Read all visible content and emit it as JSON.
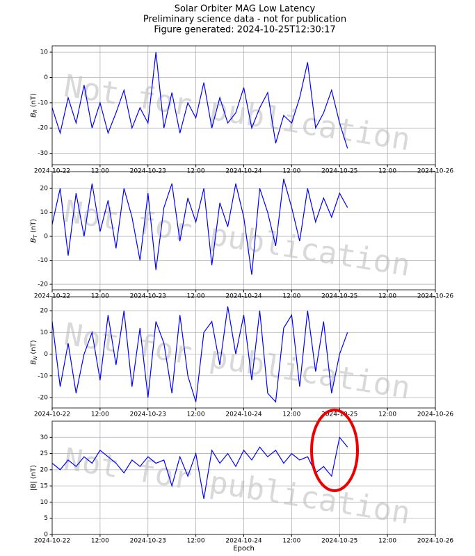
{
  "figure": {
    "title_lines": [
      "Solar Orbiter MAG Low Latency",
      "Preliminary science data - not for publication",
      "Figure generated: 2024-10-25T12:30:17"
    ]
  },
  "chart_data": [
    {
      "type": "line",
      "ylabel": "B",
      "ylabel_sub": "R",
      "ylabel_unit": "(nT)",
      "watermark": "Not for publication",
      "x": [
        "2024-10-22T00:00",
        "2024-10-22T02:00",
        "2024-10-22T04:00",
        "2024-10-22T06:00",
        "2024-10-22T08:00",
        "2024-10-22T10:00",
        "2024-10-22T12:00",
        "2024-10-22T14:00",
        "2024-10-22T16:00",
        "2024-10-22T18:00",
        "2024-10-22T20:00",
        "2024-10-22T22:00",
        "2024-10-23T00:00",
        "2024-10-23T02:00",
        "2024-10-23T04:00",
        "2024-10-23T06:00",
        "2024-10-23T08:00",
        "2024-10-23T10:00",
        "2024-10-23T12:00",
        "2024-10-23T14:00",
        "2024-10-23T16:00",
        "2024-10-23T18:00",
        "2024-10-23T20:00",
        "2024-10-23T22:00",
        "2024-10-24T00:00",
        "2024-10-24T02:00",
        "2024-10-24T04:00",
        "2024-10-24T06:00",
        "2024-10-24T08:00",
        "2024-10-24T10:00",
        "2024-10-24T12:00",
        "2024-10-24T14:00",
        "2024-10-24T16:00",
        "2024-10-24T18:00",
        "2024-10-24T20:00",
        "2024-10-24T22:00",
        "2024-10-25T00:00",
        "2024-10-25T02:00"
      ],
      "series": [
        {
          "color": "#0000ff",
          "values": [
            -12,
            -22,
            -8,
            -18,
            -3,
            -20,
            -10,
            -22,
            -14,
            -5,
            -20,
            -12,
            -18,
            10,
            -20,
            -6,
            -22,
            -10,
            -16,
            -2,
            -20,
            -8,
            -18,
            -14,
            -4,
            -20,
            -12,
            -6,
            -26,
            -15,
            -18,
            -8,
            6,
            -20,
            -14,
            -5,
            -18,
            -28
          ]
        }
      ],
      "xlim": [
        "2024-10-22T00:00",
        "2024-10-26T00:00"
      ],
      "xticks": [
        {
          "value": "2024-10-22T00:00",
          "label": "2024-10-22"
        },
        {
          "value": "2024-10-22T12:00",
          "label": "12:00"
        },
        {
          "value": "2024-10-23T00:00",
          "label": "2024-10-23"
        },
        {
          "value": "2024-10-23T12:00",
          "label": "12:00"
        },
        {
          "value": "2024-10-24T00:00",
          "label": "2024-10-24"
        },
        {
          "value": "2024-10-24T12:00",
          "label": "12:00"
        },
        {
          "value": "2024-10-25T00:00",
          "label": "2024-10-25"
        },
        {
          "value": "2024-10-25T12:00",
          "label": "12:00"
        },
        {
          "value": "2024-10-26T00:00",
          "label": "2024-10-26"
        }
      ],
      "ylim": [
        -34.5,
        12.5
      ],
      "yticks": [
        -30,
        -20,
        -10,
        0,
        10
      ],
      "grid": true
    },
    {
      "type": "line",
      "ylabel": "B",
      "ylabel_sub": "T",
      "ylabel_unit": "(nT)",
      "watermark": "Not for publication",
      "x": [
        "2024-10-22T00:00",
        "2024-10-22T02:00",
        "2024-10-22T04:00",
        "2024-10-22T06:00",
        "2024-10-22T08:00",
        "2024-10-22T10:00",
        "2024-10-22T12:00",
        "2024-10-22T14:00",
        "2024-10-22T16:00",
        "2024-10-22T18:00",
        "2024-10-22T20:00",
        "2024-10-22T22:00",
        "2024-10-23T00:00",
        "2024-10-23T02:00",
        "2024-10-23T04:00",
        "2024-10-23T06:00",
        "2024-10-23T08:00",
        "2024-10-23T10:00",
        "2024-10-23T12:00",
        "2024-10-23T14:00",
        "2024-10-23T16:00",
        "2024-10-23T18:00",
        "2024-10-23T20:00",
        "2024-10-23T22:00",
        "2024-10-24T00:00",
        "2024-10-24T02:00",
        "2024-10-24T04:00",
        "2024-10-24T06:00",
        "2024-10-24T08:00",
        "2024-10-24T10:00",
        "2024-10-24T12:00",
        "2024-10-24T14:00",
        "2024-10-24T16:00",
        "2024-10-24T18:00",
        "2024-10-24T20:00",
        "2024-10-24T22:00",
        "2024-10-25T00:00",
        "2024-10-25T02:00"
      ],
      "series": [
        {
          "color": "#0000ff",
          "values": [
            5,
            20,
            -8,
            18,
            0,
            22,
            2,
            15,
            -5,
            20,
            8,
            -10,
            18,
            -14,
            12,
            22,
            -2,
            16,
            6,
            20,
            -12,
            14,
            4,
            22,
            8,
            -16,
            20,
            10,
            -4,
            24,
            12,
            -2,
            20,
            6,
            16,
            8,
            18,
            12
          ]
        }
      ],
      "xlim": [
        "2024-10-22T00:00",
        "2024-10-26T00:00"
      ],
      "xticks": [
        {
          "value": "2024-10-22T00:00",
          "label": "2024-10-22"
        },
        {
          "value": "2024-10-22T12:00",
          "label": "12:00"
        },
        {
          "value": "2024-10-23T00:00",
          "label": "2024-10-23"
        },
        {
          "value": "2024-10-23T12:00",
          "label": "12:00"
        },
        {
          "value": "2024-10-24T00:00",
          "label": "2024-10-24"
        },
        {
          "value": "2024-10-24T12:00",
          "label": "12:00"
        },
        {
          "value": "2024-10-25T00:00",
          "label": "2024-10-25"
        },
        {
          "value": "2024-10-25T12:00",
          "label": "12:00"
        },
        {
          "value": "2024-10-26T00:00",
          "label": "2024-10-26"
        }
      ],
      "ylim": [
        -22.3,
        27
      ],
      "yticks": [
        -20,
        -10,
        0,
        10,
        20
      ],
      "grid": true
    },
    {
      "type": "line",
      "ylabel": "B",
      "ylabel_sub": "N",
      "ylabel_unit": "(nT)",
      "watermark": "Not for publication",
      "x": [
        "2024-10-22T00:00",
        "2024-10-22T02:00",
        "2024-10-22T04:00",
        "2024-10-22T06:00",
        "2024-10-22T08:00",
        "2024-10-22T10:00",
        "2024-10-22T12:00",
        "2024-10-22T14:00",
        "2024-10-22T16:00",
        "2024-10-22T18:00",
        "2024-10-22T20:00",
        "2024-10-22T22:00",
        "2024-10-23T00:00",
        "2024-10-23T02:00",
        "2024-10-23T04:00",
        "2024-10-23T06:00",
        "2024-10-23T08:00",
        "2024-10-23T10:00",
        "2024-10-23T12:00",
        "2024-10-23T14:00",
        "2024-10-23T16:00",
        "2024-10-23T18:00",
        "2024-10-23T20:00",
        "2024-10-23T22:00",
        "2024-10-24T00:00",
        "2024-10-24T02:00",
        "2024-10-24T04:00",
        "2024-10-24T06:00",
        "2024-10-24T08:00",
        "2024-10-24T10:00",
        "2024-10-24T12:00",
        "2024-10-24T14:00",
        "2024-10-24T16:00",
        "2024-10-24T18:00",
        "2024-10-24T20:00",
        "2024-10-24T22:00",
        "2024-10-25T00:00",
        "2024-10-25T02:00"
      ],
      "series": [
        {
          "color": "#0000ff",
          "values": [
            15,
            -15,
            5,
            -18,
            0,
            10,
            -12,
            18,
            -5,
            20,
            -15,
            12,
            -20,
            15,
            5,
            -18,
            18,
            -10,
            -22,
            10,
            15,
            -5,
            22,
            0,
            18,
            -12,
            20,
            -18,
            -22,
            12,
            18,
            -15,
            20,
            -8,
            15,
            -18,
            0,
            10
          ]
        }
      ],
      "xlim": [
        "2024-10-22T00:00",
        "2024-10-26T00:00"
      ],
      "xticks": [
        {
          "value": "2024-10-22T00:00",
          "label": "2024-10-22"
        },
        {
          "value": "2024-10-22T12:00",
          "label": "12:00"
        },
        {
          "value": "2024-10-23T00:00",
          "label": "2024-10-23"
        },
        {
          "value": "2024-10-23T12:00",
          "label": "12:00"
        },
        {
          "value": "2024-10-24T00:00",
          "label": "2024-10-24"
        },
        {
          "value": "2024-10-24T12:00",
          "label": "12:00"
        },
        {
          "value": "2024-10-25T00:00",
          "label": "2024-10-25"
        },
        {
          "value": "2024-10-25T12:00",
          "label": "12:00"
        },
        {
          "value": "2024-10-26T00:00",
          "label": "2024-10-26"
        }
      ],
      "ylim": [
        -24.8,
        26.4
      ],
      "yticks": [
        -20,
        -10,
        0,
        10,
        20
      ],
      "grid": true
    },
    {
      "type": "line",
      "ylabel": "|B| (nT)",
      "xlabel": "Epoch",
      "watermark": "Not for publication",
      "x": [
        "2024-10-22T00:00",
        "2024-10-22T02:00",
        "2024-10-22T04:00",
        "2024-10-22T06:00",
        "2024-10-22T08:00",
        "2024-10-22T10:00",
        "2024-10-22T12:00",
        "2024-10-22T14:00",
        "2024-10-22T16:00",
        "2024-10-22T18:00",
        "2024-10-22T20:00",
        "2024-10-22T22:00",
        "2024-10-23T00:00",
        "2024-10-23T02:00",
        "2024-10-23T04:00",
        "2024-10-23T06:00",
        "2024-10-23T08:00",
        "2024-10-23T10:00",
        "2024-10-23T12:00",
        "2024-10-23T14:00",
        "2024-10-23T16:00",
        "2024-10-23T18:00",
        "2024-10-23T20:00",
        "2024-10-23T22:00",
        "2024-10-24T00:00",
        "2024-10-24T02:00",
        "2024-10-24T04:00",
        "2024-10-24T06:00",
        "2024-10-24T08:00",
        "2024-10-24T10:00",
        "2024-10-24T12:00",
        "2024-10-24T14:00",
        "2024-10-24T16:00",
        "2024-10-24T18:00",
        "2024-10-24T20:00",
        "2024-10-24T22:00",
        "2024-10-25T00:00",
        "2024-10-25T02:00"
      ],
      "series": [
        {
          "color": "#0000ff",
          "values": [
            22,
            20,
            23,
            21,
            24,
            22,
            26,
            24,
            22,
            19,
            23,
            21,
            24,
            22,
            23,
            15,
            24,
            18,
            25,
            11,
            26,
            22,
            25,
            21,
            26,
            23,
            27,
            24,
            26,
            22,
            25,
            23,
            24,
            19,
            21,
            18,
            30,
            27
          ]
        }
      ],
      "xlim": [
        "2024-10-22T00:00",
        "2024-10-26T00:00"
      ],
      "xticks": [
        {
          "value": "2024-10-22T00:00",
          "label": "2024-10-22"
        },
        {
          "value": "2024-10-22T12:00",
          "label": "12:00"
        },
        {
          "value": "2024-10-23T00:00",
          "label": "2024-10-23"
        },
        {
          "value": "2024-10-23T12:00",
          "label": "12:00"
        },
        {
          "value": "2024-10-24T00:00",
          "label": "2024-10-24"
        },
        {
          "value": "2024-10-24T12:00",
          "label": "12:00"
        },
        {
          "value": "2024-10-25T00:00",
          "label": "2024-10-25"
        },
        {
          "value": "2024-10-25T12:00",
          "label": "12:00"
        },
        {
          "value": "2024-10-26T00:00",
          "label": "2024-10-26"
        }
      ],
      "ylim": [
        0,
        35
      ],
      "yticks": [
        0,
        5,
        10,
        15,
        20,
        25,
        30
      ],
      "grid": true
    }
  ]
}
